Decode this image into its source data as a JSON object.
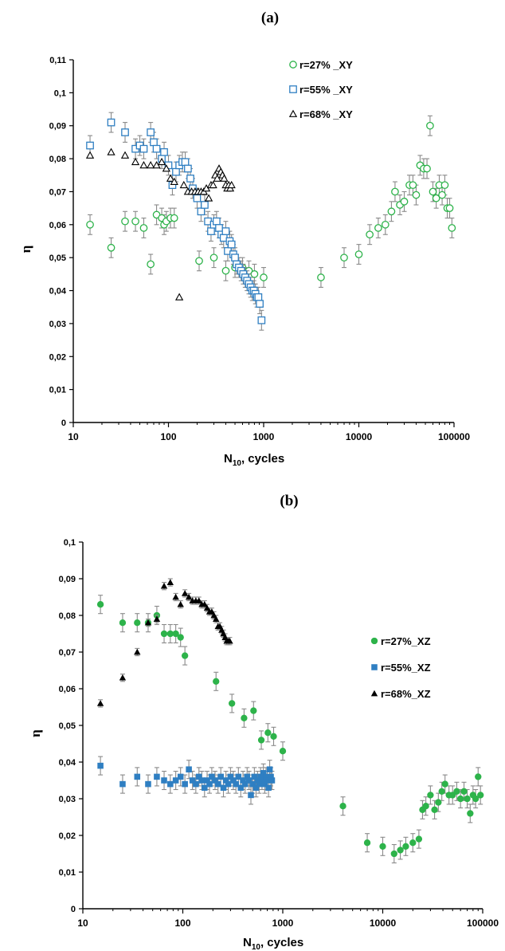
{
  "chart_data": [
    {
      "panel": "(a)",
      "type": "scatter",
      "xscale": "log",
      "xlim": [
        10,
        100000
      ],
      "ylim": [
        0,
        0.11
      ],
      "yticks": [
        "0",
        "0,01",
        "0,02",
        "0,03",
        "0,04",
        "0,05",
        "0,06",
        "0,07",
        "0,08",
        "0,09",
        "0,1",
        "0,11"
      ],
      "xticks": [
        "10",
        "100",
        "1000",
        "10000",
        "100000"
      ],
      "xlabel_main": "N",
      "xlabel_sub": "10",
      "xlabel_rest": ", cycles",
      "ylabel": "η",
      "grid": false,
      "legend_position": "top-right",
      "series": [
        {
          "name": "r=27% _XY",
          "marker": "circle-open",
          "color": "#2db34a",
          "x": [
            15,
            25,
            35,
            45,
            55,
            65,
            75,
            85,
            90,
            95,
            105,
            115,
            210,
            300,
            400,
            500,
            600,
            700,
            800,
            1000,
            4000,
            7000,
            10000,
            13000,
            16000,
            19000,
            22000,
            24000,
            27000,
            30000,
            34000,
            37000,
            40000,
            44000,
            48000,
            52000,
            56000,
            60000,
            65000,
            70000,
            75000,
            80000,
            85000,
            90000,
            95000
          ],
          "y": [
            0.06,
            0.053,
            0.061,
            0.061,
            0.059,
            0.048,
            0.063,
            0.062,
            0.06,
            0.061,
            0.062,
            0.062,
            0.049,
            0.05,
            0.046,
            0.047,
            0.047,
            0.046,
            0.045,
            0.044,
            0.044,
            0.05,
            0.051,
            0.057,
            0.059,
            0.06,
            0.064,
            0.07,
            0.066,
            0.067,
            0.072,
            0.072,
            0.069,
            0.078,
            0.077,
            0.077,
            0.09,
            0.07,
            0.068,
            0.072,
            0.069,
            0.072,
            0.065,
            0.065,
            0.059
          ],
          "err": 0.003
        },
        {
          "name": "r=55% _XY",
          "marker": "square-open",
          "color": "#2f7fc2",
          "x": [
            15,
            25,
            35,
            45,
            50,
            55,
            65,
            70,
            75,
            85,
            90,
            100,
            110,
            120,
            130,
            140,
            150,
            160,
            170,
            180,
            200,
            220,
            240,
            260,
            280,
            300,
            320,
            340,
            360,
            380,
            400,
            420,
            440,
            460,
            480,
            500,
            520,
            550,
            580,
            610,
            640,
            670,
            700,
            730,
            760,
            790,
            820,
            850,
            880,
            910,
            950
          ],
          "y": [
            0.084,
            0.091,
            0.088,
            0.083,
            0.084,
            0.083,
            0.088,
            0.085,
            0.083,
            0.08,
            0.082,
            0.078,
            0.072,
            0.076,
            0.078,
            0.079,
            0.079,
            0.077,
            0.074,
            0.071,
            0.068,
            0.064,
            0.066,
            0.061,
            0.058,
            0.06,
            0.061,
            0.059,
            0.057,
            0.056,
            0.058,
            0.052,
            0.055,
            0.054,
            0.051,
            0.05,
            0.048,
            0.047,
            0.046,
            0.045,
            0.044,
            0.043,
            0.042,
            0.041,
            0.04,
            0.04,
            0.039,
            0.038,
            0.038,
            0.036,
            0.031
          ],
          "err": 0.003
        },
        {
          "name": "r=68% _XY",
          "marker": "triangle-open",
          "color": "#000000",
          "x": [
            15,
            25,
            35,
            45,
            55,
            65,
            75,
            85,
            95,
            105,
            115,
            130,
            145,
            160,
            175,
            190,
            205,
            220,
            235,
            250,
            265,
            280,
            295,
            310,
            325,
            340,
            355,
            370,
            385,
            400,
            415,
            430,
            445,
            460
          ],
          "y": [
            0.081,
            0.082,
            0.081,
            0.079,
            0.078,
            0.078,
            0.078,
            0.079,
            0.077,
            0.074,
            0.073,
            0.038,
            0.072,
            0.07,
            0.07,
            0.07,
            0.07,
            0.07,
            0.07,
            0.071,
            0.068,
            0.072,
            0.072,
            0.075,
            0.074,
            0.077,
            0.076,
            0.075,
            0.074,
            0.072,
            0.071,
            0.072,
            0.071,
            0.072
          ],
          "err": 0.0
        }
      ]
    },
    {
      "panel": "(b)",
      "type": "scatter",
      "xscale": "log",
      "xlim": [
        10,
        100000
      ],
      "ylim": [
        0,
        0.1
      ],
      "yticks": [
        "0",
        "0,01",
        "0,02",
        "0,03",
        "0,04",
        "0,05",
        "0,06",
        "0,07",
        "0,08",
        "0,09",
        "0,1"
      ],
      "xticks": [
        "10",
        "100",
        "1000",
        "10000",
        "100000"
      ],
      "xlabel_main": "N",
      "xlabel_sub": "10",
      "xlabel_rest": ", cycles",
      "ylabel": "η",
      "grid": false,
      "legend_position": "top-right",
      "series": [
        {
          "name": "r=27%_XZ",
          "marker": "circle-filled",
          "color": "#2db34a",
          "x": [
            15,
            25,
            35,
            45,
            55,
            65,
            75,
            85,
            95,
            105,
            215,
            310,
            410,
            510,
            610,
            710,
            810,
            1000,
            4000,
            7000,
            10000,
            13000,
            15000,
            17000,
            20000,
            23000,
            25000,
            27000,
            30000,
            33000,
            36000,
            39000,
            42000,
            46000,
            50000,
            55000,
            60000,
            65000,
            70000,
            75000,
            80000,
            85000,
            90000,
            95000
          ],
          "y": [
            0.083,
            0.078,
            0.078,
            0.078,
            0.08,
            0.075,
            0.075,
            0.075,
            0.074,
            0.069,
            0.062,
            0.056,
            0.052,
            0.054,
            0.046,
            0.048,
            0.047,
            0.043,
            0.028,
            0.018,
            0.017,
            0.015,
            0.016,
            0.017,
            0.018,
            0.019,
            0.027,
            0.028,
            0.031,
            0.027,
            0.029,
            0.032,
            0.034,
            0.031,
            0.031,
            0.032,
            0.03,
            0.032,
            0.03,
            0.026,
            0.031,
            0.03,
            0.036,
            0.031
          ],
          "err": 0.0025
        },
        {
          "name": "r=55%_XZ",
          "marker": "square-filled",
          "color": "#2f7fc2",
          "x": [
            15,
            25,
            35,
            45,
            55,
            65,
            75,
            85,
            95,
            105,
            115,
            125,
            135,
            145,
            155,
            165,
            175,
            185,
            195,
            210,
            225,
            240,
            255,
            270,
            285,
            300,
            320,
            340,
            360,
            380,
            400,
            420,
            440,
            460,
            480,
            500,
            520,
            540,
            560,
            580,
            600,
            620,
            640,
            660,
            680,
            700,
            720,
            740,
            760,
            780
          ],
          "y": [
            0.039,
            0.034,
            0.036,
            0.034,
            0.036,
            0.035,
            0.034,
            0.035,
            0.036,
            0.034,
            0.038,
            0.035,
            0.034,
            0.036,
            0.035,
            0.033,
            0.035,
            0.034,
            0.036,
            0.035,
            0.034,
            0.036,
            0.033,
            0.035,
            0.034,
            0.036,
            0.035,
            0.034,
            0.036,
            0.033,
            0.035,
            0.034,
            0.036,
            0.035,
            0.031,
            0.034,
            0.036,
            0.033,
            0.035,
            0.034,
            0.036,
            0.035,
            0.037,
            0.034,
            0.036,
            0.035,
            0.033,
            0.038,
            0.036,
            0.035
          ],
          "err": 0.0025
        },
        {
          "name": "r=68%_XZ",
          "marker": "triangle-filled",
          "color": "#000000",
          "x": [
            15,
            25,
            35,
            45,
            55,
            65,
            75,
            85,
            95,
            105,
            115,
            125,
            135,
            145,
            155,
            165,
            175,
            185,
            195,
            205,
            215,
            225,
            235,
            245,
            255,
            265,
            275,
            285,
            295
          ],
          "y": [
            0.056,
            0.063,
            0.07,
            0.078,
            0.079,
            0.088,
            0.089,
            0.085,
            0.083,
            0.086,
            0.085,
            0.084,
            0.084,
            0.084,
            0.083,
            0.083,
            0.082,
            0.081,
            0.081,
            0.08,
            0.079,
            0.077,
            0.077,
            0.076,
            0.075,
            0.074,
            0.073,
            0.073,
            0.073
          ],
          "err": 0.001
        }
      ]
    }
  ]
}
